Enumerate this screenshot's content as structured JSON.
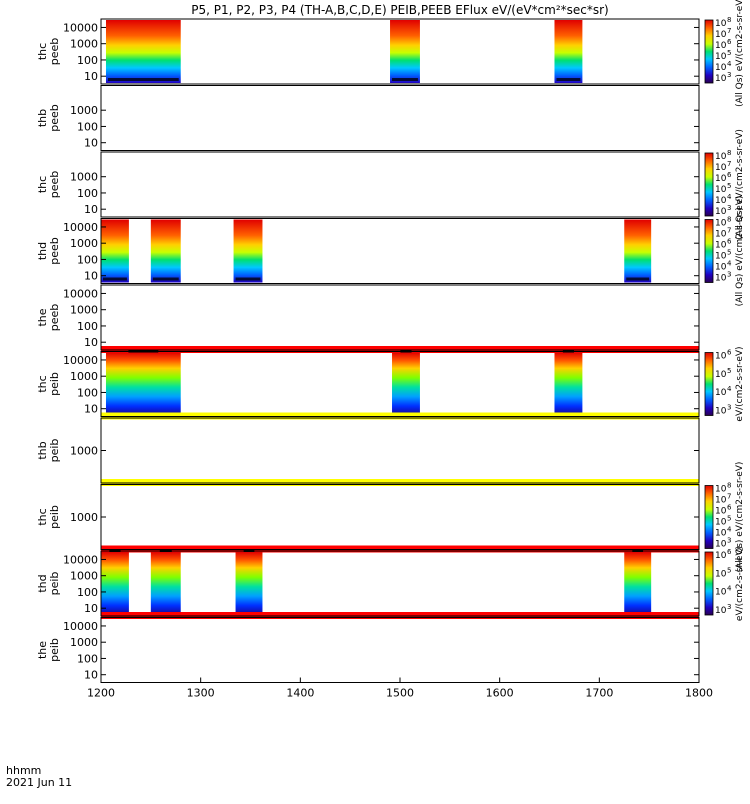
{
  "chart_data": {
    "type": "heatmap",
    "title": "P5, P1, P2, P3, P4 (TH-A,B,C,D,E) PEIB,PEEB EFlux eV/(eV*cm²*sec*sr)",
    "x_axis": {
      "range": [
        1200,
        1800
      ],
      "ticks": [
        "1200",
        "1300",
        "1400",
        "1500",
        "1600",
        "1700",
        "1800"
      ],
      "label_line1": "hhmm",
      "label_line2": "2021 Jun 11"
    },
    "colorbar": {
      "label_low": "10",
      "peeb_exponents": [
        "3",
        "4",
        "5",
        "6",
        "7",
        "8"
      ],
      "peib_exponents": [
        "3",
        "4",
        "5",
        "6"
      ],
      "unit_peeb": "(All Qs) eV/(cm2-s-sr-eV)",
      "unit_peib": "eV/(cm2-s-sr-eV)",
      "colors": [
        "#2a0050",
        "#2000c0",
        "#0060ff",
        "#00c8ff",
        "#00e070",
        "#c8ff00",
        "#ffd000",
        "#ff6000",
        "#e00000"
      ]
    },
    "panels": [
      {
        "probe": "thc",
        "species": "peeb",
        "yticks": [
          "10",
          "100",
          "1000",
          "10000"
        ],
        "intervals": [
          [
            1205,
            1280
          ],
          [
            1490,
            1520
          ],
          [
            1655,
            1683
          ]
        ],
        "colorbar": "peeb"
      },
      {
        "probe": "thb",
        "species": "peeb",
        "yticks": [
          "10",
          "100",
          "1000"
        ],
        "intervals": [],
        "colorbar": "none"
      },
      {
        "probe": "thc",
        "species": "peeb",
        "yticks": [
          "10",
          "100",
          "1000"
        ],
        "intervals": [],
        "colorbar": "peeb"
      },
      {
        "probe": "thd",
        "species": "peeb",
        "yticks": [
          "10",
          "100",
          "1000",
          "10000"
        ],
        "intervals": [
          [
            1200,
            1228
          ],
          [
            1250,
            1280
          ],
          [
            1333,
            1362
          ],
          [
            1725,
            1752
          ]
        ],
        "colorbar": "peeb"
      },
      {
        "probe": "the",
        "species": "peeb",
        "yticks": [
          "10",
          "100",
          "1000",
          "10000"
        ],
        "intervals": [],
        "colorbar": "none",
        "band": "red"
      },
      {
        "probe": "thc",
        "species": "peib",
        "yticks": [
          "10",
          "100",
          "1000",
          "10000"
        ],
        "intervals": [
          [
            1205,
            1280
          ],
          [
            1492,
            1520
          ],
          [
            1655,
            1683
          ]
        ],
        "colorbar": "peib",
        "band": "yellow"
      },
      {
        "probe": "thb",
        "species": "peib",
        "yticks": [
          "1000"
        ],
        "intervals": [],
        "colorbar": "none",
        "band": "yellow"
      },
      {
        "probe": "thc",
        "species": "peib",
        "yticks": [
          "1000"
        ],
        "intervals": [],
        "colorbar": "peeb",
        "band": "red"
      },
      {
        "probe": "thd",
        "species": "peib",
        "yticks": [
          "10",
          "100",
          "1000",
          "10000"
        ],
        "intervals": [
          [
            1200,
            1228
          ],
          [
            1250,
            1280
          ],
          [
            1335,
            1362
          ],
          [
            1725,
            1752
          ]
        ],
        "colorbar": "peib",
        "band": "red"
      },
      {
        "probe": "the",
        "species": "peib",
        "yticks": [
          "10",
          "100",
          "1000",
          "10000"
        ],
        "intervals": [],
        "colorbar": "none"
      }
    ]
  }
}
